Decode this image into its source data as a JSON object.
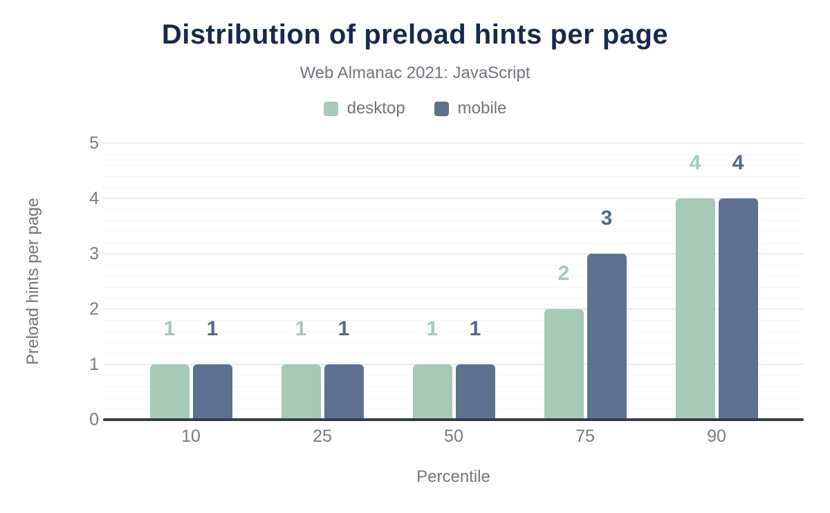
{
  "title": "Distribution of preload hints per page",
  "subtitle": "Web Almanac 2021: JavaScript",
  "colors": {
    "title": "#19294d",
    "muted_text": "#74747d",
    "tick_text": "#7a7a82",
    "axis_line": "#363b47",
    "gridline_major": "#ececec",
    "gridline_minor": "#f6f6f6",
    "desktop": "#a6c9b8",
    "mobile": "#5f7190",
    "desktop_label": "#a6c9b8",
    "mobile_label": "#56688a"
  },
  "chart_data": {
    "type": "bar",
    "title": "Distribution of preload hints per page",
    "subtitle": "Web Almanac 2021: JavaScript",
    "categories": [
      "10",
      "25",
      "50",
      "75",
      "90"
    ],
    "series": [
      {
        "name": "desktop",
        "color": "#a6c9b8",
        "label_color": "#a6c9b8",
        "values": [
          1,
          1,
          1,
          2,
          4
        ]
      },
      {
        "name": "mobile",
        "color": "#5f7190",
        "label_color": "#56688a",
        "values": [
          1,
          1,
          1,
          3,
          4
        ]
      }
    ],
    "xlabel": "Percentile",
    "ylabel": "Preload hints per page",
    "ylim": [
      0,
      5
    ],
    "yticks": [
      0,
      1,
      2,
      3,
      4,
      5
    ],
    "grid": "horizontal, major every 1 with minor every 0.2",
    "legend_position": "top",
    "value_labels": "above bars, colored per series"
  }
}
